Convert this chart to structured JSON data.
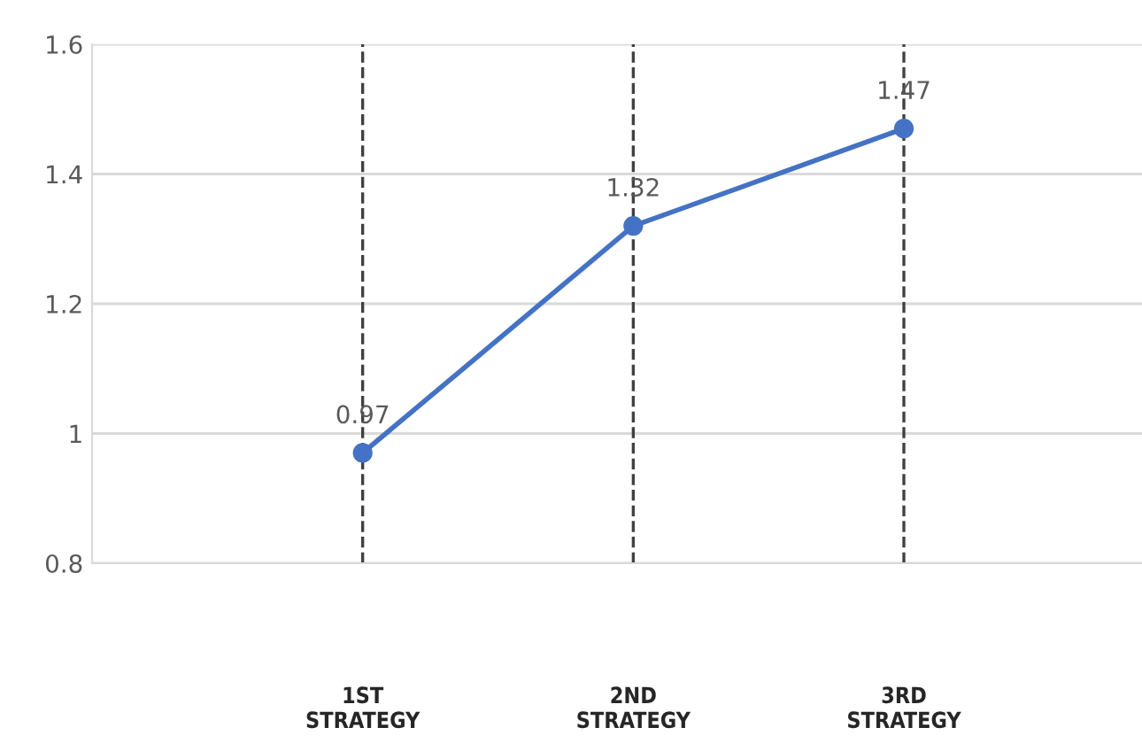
{
  "chart_data": {
    "type": "line",
    "categories": [
      "1ST\nSTRATEGY",
      "2ND\nSTRATEGY",
      "3RD\nSTRATEGY"
    ],
    "series": [
      {
        "color": "#4472c4",
        "values": [
          0.97,
          1.32,
          1.47
        ]
      }
    ],
    "ylim": [
      0.8,
      1.6
    ],
    "yticks": [
      0.8,
      1,
      1.2,
      1.4,
      1.6
    ],
    "grid": "y",
    "marker": "circle",
    "line_style": "solid",
    "data_labels": true,
    "ref_lines": [
      {
        "axis": "x",
        "value": "1ST\nSTRATEGY",
        "color": "#404040",
        "line_style": "dashed"
      },
      {
        "axis": "x",
        "value": "2ND\nSTRATEGY",
        "color": "#404040",
        "line_style": "dashed"
      },
      {
        "axis": "x",
        "value": "3RD\nSTRATEGY",
        "color": "#404040",
        "line_style": "dashed"
      }
    ]
  }
}
